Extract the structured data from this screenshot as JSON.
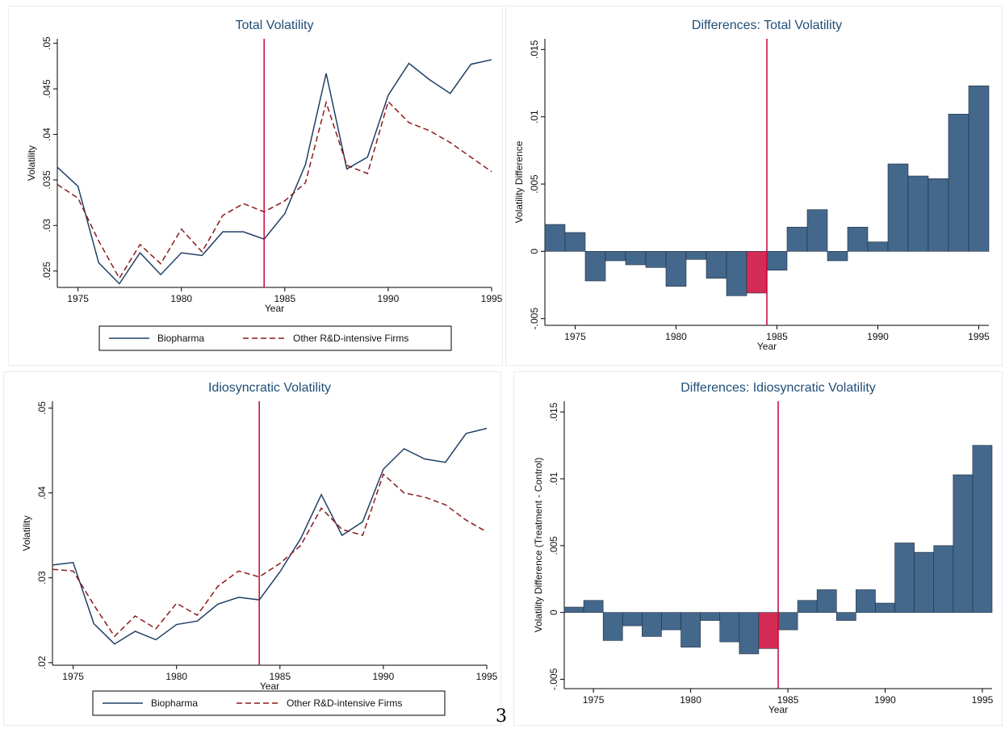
{
  "page_number": "3",
  "colors": {
    "bio": "#1f3f66",
    "other": "#8b1a1a",
    "bar": "#44688c",
    "bar_highlight": "#d42c54",
    "vline": "#cc0033",
    "title": "#1f4e79"
  },
  "chart_data": [
    {
      "id": "tl",
      "type": "line",
      "title": "Total Volatility",
      "xlabel": "Year",
      "ylabel": "Volatility",
      "xlim": [
        1974,
        1995
      ],
      "ylim": [
        0.0232,
        0.0505
      ],
      "xticks": [
        {
          "v": 1975,
          "t": "1975"
        },
        {
          "v": 1980,
          "t": "1980"
        },
        {
          "v": 1985,
          "t": "1985"
        },
        {
          "v": 1990,
          "t": "1990"
        },
        {
          "v": 1995,
          "t": "1995"
        }
      ],
      "yticks": [
        {
          "v": 0.025,
          "t": ".025"
        },
        {
          "v": 0.03,
          "t": ".03"
        },
        {
          "v": 0.035,
          "t": ".035"
        },
        {
          "v": 0.04,
          "t": ".04"
        },
        {
          "v": 0.045,
          "t": ".045"
        },
        {
          "v": 0.05,
          "t": ".05"
        }
      ],
      "vline": 1984,
      "x": [
        1974,
        1975,
        1976,
        1977,
        1978,
        1979,
        1980,
        1981,
        1982,
        1983,
        1984,
        1985,
        1986,
        1987,
        1988,
        1989,
        1990,
        1991,
        1992,
        1993,
        1994,
        1995
      ],
      "series": [
        {
          "name": "Biopharma",
          "style": "solid",
          "values": [
            0.0364,
            0.0343,
            0.0259,
            0.0236,
            0.027,
            0.0246,
            0.027,
            0.0267,
            0.0293,
            0.0293,
            0.0285,
            0.0313,
            0.0367,
            0.0467,
            0.0362,
            0.0375,
            0.0443,
            0.0478,
            0.046,
            0.0445,
            0.0477,
            0.0482
          ]
        },
        {
          "name": "Other R&D-intensive Firms",
          "style": "dashed",
          "values": [
            0.0345,
            0.033,
            0.0283,
            0.0242,
            0.0279,
            0.0258,
            0.0296,
            0.0271,
            0.0311,
            0.0324,
            0.0315,
            0.0327,
            0.0347,
            0.0435,
            0.0366,
            0.0357,
            0.0436,
            0.0413,
            0.0404,
            0.0391,
            0.0375,
            0.0359
          ]
        }
      ]
    },
    {
      "id": "tr",
      "type": "bar",
      "title": "Differences: Total Volatility",
      "xlabel": "Year",
      "ylabel": "Volatility Difference",
      "xlim": [
        1973.5,
        1995.5
      ],
      "ylim": [
        -0.0055,
        0.0158
      ],
      "xticks": [
        {
          "v": 1975,
          "t": "1975"
        },
        {
          "v": 1980,
          "t": "1980"
        },
        {
          "v": 1985,
          "t": "1985"
        },
        {
          "v": 1990,
          "t": "1990"
        },
        {
          "v": 1995,
          "t": "1995"
        }
      ],
      "yticks": [
        {
          "v": -0.005,
          "t": "-.005"
        },
        {
          "v": 0,
          "t": "0"
        },
        {
          "v": 0.005,
          "t": ".005"
        },
        {
          "v": 0.01,
          "t": ".01"
        },
        {
          "v": 0.015,
          "t": ".015"
        }
      ],
      "vline": 1984.5,
      "highlight": 1984,
      "x": [
        1974,
        1975,
        1976,
        1977,
        1978,
        1979,
        1980,
        1981,
        1982,
        1983,
        1984,
        1985,
        1986,
        1987,
        1988,
        1989,
        1990,
        1991,
        1992,
        1993,
        1994,
        1995
      ],
      "values": [
        0.002,
        0.0014,
        -0.0022,
        -0.0007,
        -0.001,
        -0.0012,
        -0.0026,
        -0.0006,
        -0.002,
        -0.0033,
        -0.0031,
        -0.0014,
        0.0018,
        0.0031,
        -0.0007,
        0.0018,
        0.0007,
        0.0065,
        0.0056,
        0.0054,
        0.0102,
        0.0123
      ]
    },
    {
      "id": "bl",
      "type": "line",
      "title": "Idiosyncratic Volatility",
      "xlabel": "Year",
      "ylabel": "Volatility",
      "xlim": [
        1974,
        1995
      ],
      "ylim": [
        0.0197,
        0.0508
      ],
      "xticks": [
        {
          "v": 1975,
          "t": "1975"
        },
        {
          "v": 1980,
          "t": "1980"
        },
        {
          "v": 1985,
          "t": "1985"
        },
        {
          "v": 1990,
          "t": "1990"
        },
        {
          "v": 1995,
          "t": "1995"
        }
      ],
      "yticks": [
        {
          "v": 0.02,
          "t": ".02"
        },
        {
          "v": 0.03,
          "t": ".03"
        },
        {
          "v": 0.04,
          "t": ".04"
        },
        {
          "v": 0.05,
          "t": ".05"
        }
      ],
      "vline": 1984,
      "x": [
        1974,
        1975,
        1976,
        1977,
        1978,
        1979,
        1980,
        1981,
        1982,
        1983,
        1984,
        1985,
        1986,
        1987,
        1988,
        1989,
        1990,
        1991,
        1992,
        1993,
        1994,
        1995
      ],
      "series": [
        {
          "name": "Biopharma",
          "style": "solid",
          "values": [
            0.0315,
            0.0318,
            0.0246,
            0.0222,
            0.0237,
            0.0227,
            0.0245,
            0.0249,
            0.0269,
            0.0277,
            0.0274,
            0.0307,
            0.0346,
            0.0398,
            0.035,
            0.0366,
            0.0428,
            0.0452,
            0.044,
            0.0436,
            0.047,
            0.0476
          ]
        },
        {
          "name": "Other R&D-intensive Firms",
          "style": "dashed",
          "values": [
            0.031,
            0.0308,
            0.0268,
            0.0231,
            0.0255,
            0.024,
            0.027,
            0.0256,
            0.029,
            0.0308,
            0.0301,
            0.0317,
            0.0338,
            0.0382,
            0.0357,
            0.035,
            0.0422,
            0.04,
            0.0395,
            0.0386,
            0.0368,
            0.0354
          ]
        }
      ]
    },
    {
      "id": "br",
      "type": "bar",
      "title": "Differences: Idiosyncratic Volatility",
      "xlabel": "Year",
      "ylabel": "Volatility Difference (Treatment - Control)",
      "xlim": [
        1973.5,
        1995.5
      ],
      "ylim": [
        -0.0057,
        0.0158
      ],
      "xticks": [
        {
          "v": 1975,
          "t": "1975"
        },
        {
          "v": 1980,
          "t": "1980"
        },
        {
          "v": 1985,
          "t": "1985"
        },
        {
          "v": 1990,
          "t": "1990"
        },
        {
          "v": 1995,
          "t": "1995"
        }
      ],
      "yticks": [
        {
          "v": -0.005,
          "t": "-.005"
        },
        {
          "v": 0,
          "t": "0"
        },
        {
          "v": 0.005,
          "t": ".005"
        },
        {
          "v": 0.01,
          "t": ".01"
        },
        {
          "v": 0.015,
          "t": ".015"
        }
      ],
      "vline": 1984.5,
      "highlight": 1984,
      "x": [
        1974,
        1975,
        1976,
        1977,
        1978,
        1979,
        1980,
        1981,
        1982,
        1983,
        1984,
        1985,
        1986,
        1987,
        1988,
        1989,
        1990,
        1991,
        1992,
        1993,
        1994,
        1995
      ],
      "values": [
        0.0004,
        0.0009,
        -0.0021,
        -0.001,
        -0.0018,
        -0.0013,
        -0.0026,
        -0.0006,
        -0.0022,
        -0.0031,
        -0.0027,
        -0.0013,
        0.0009,
        0.0017,
        -0.0006,
        0.0017,
        0.0007,
        0.0052,
        0.0045,
        0.005,
        0.0103,
        0.0125
      ]
    }
  ]
}
